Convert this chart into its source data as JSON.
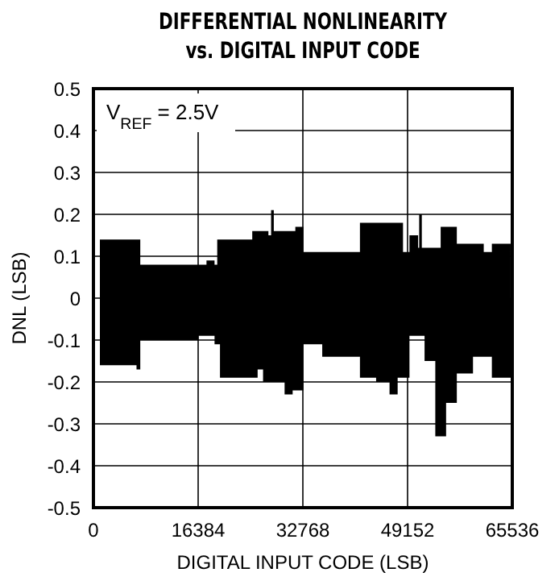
{
  "chart_data": {
    "type": "area",
    "title": "DIFFERENTIAL NONLINEARITY\nvs. DIGITAL INPUT CODE",
    "xlabel": "DIGITAL INPUT CODE (LSB)",
    "ylabel": "DNL (LSB)",
    "annotations": [
      "V$_{REF}$ = 2.5V"
    ],
    "xlim": [
      0,
      65536
    ],
    "xticks": [
      0,
      16384,
      32768,
      49152,
      65536
    ],
    "ylim": [
      -0.5,
      0.5
    ],
    "yticks": [
      -0.5,
      -0.4,
      -0.3,
      -0.2,
      -0.1,
      0,
      0.1,
      0.2,
      0.3,
      0.4,
      0.5
    ],
    "grid": true,
    "series": [
      {
        "color": "#000000",
        "x": [
          1010,
          6740,
          7330,
          17690,
          18950,
          19370,
          23590,
          24850,
          27380,
          27800,
          28220,
          31590,
          32850,
          35800,
          41280,
          41700,
          47600,
          48440,
          49450,
          50800,
          50970,
          51380,
          54330,
          56860,
          61070,
          62340,
          65280
        ],
        "values": [
          0.14,
          0.14,
          0.08,
          0.09,
          0.08,
          0.14,
          0.14,
          0.16,
          0.15,
          0.21,
          0.16,
          0.17,
          0.11,
          0.11,
          0.11,
          0.18,
          0.18,
          0.11,
          0.15,
          0.12,
          0.2,
          0.12,
          0.17,
          0.13,
          0.11,
          0.13,
          0.1
        ]
      },
      {
        "color": "#000000",
        "x": [
          1010,
          6740,
          7330,
          16430,
          18950,
          19800,
          25690,
          26540,
          29480,
          29910,
          31170,
          32850,
          35800,
          40010,
          41700,
          44230,
          46330,
          47600,
          49450,
          51810,
          53490,
          55180,
          56860,
          59390,
          62340,
          65290
        ],
        "values": [
          -0.16,
          -0.17,
          -0.1,
          -0.09,
          -0.11,
          -0.19,
          -0.17,
          -0.2,
          -0.2,
          -0.23,
          -0.22,
          -0.11,
          -0.14,
          -0.14,
          -0.19,
          -0.2,
          -0.23,
          -0.19,
          -0.09,
          -0.15,
          -0.33,
          -0.25,
          -0.18,
          -0.14,
          -0.19,
          -0.15
        ]
      }
    ]
  }
}
